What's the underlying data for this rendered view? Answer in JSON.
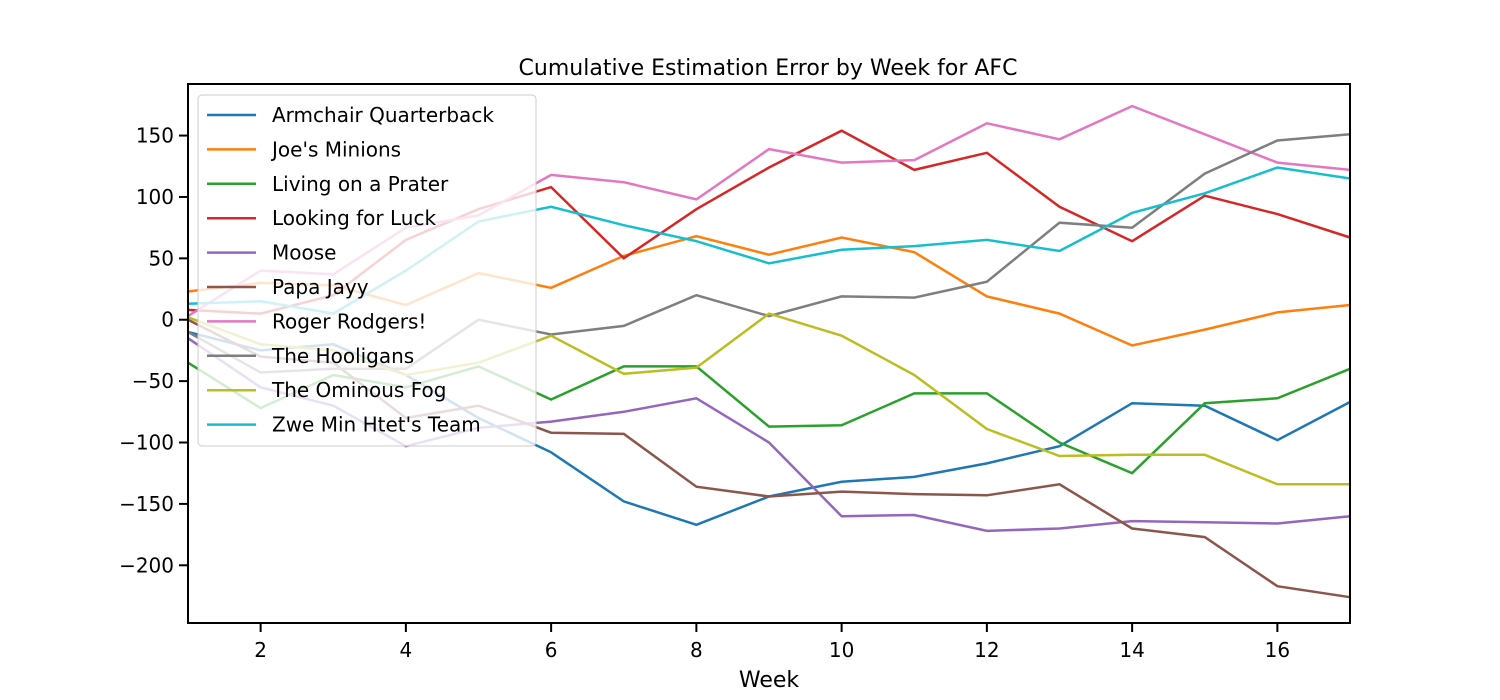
{
  "chart_data": {
    "type": "line",
    "title": "Cumulative Estimation Error by Week for AFC",
    "xlabel": "Week",
    "ylabel": "",
    "xlim": [
      1,
      17
    ],
    "ylim": [
      -247,
      192
    ],
    "xticks": [
      2,
      4,
      6,
      8,
      10,
      12,
      14,
      16
    ],
    "yticks": [
      -200,
      -150,
      -100,
      -50,
      0,
      50,
      100,
      150
    ],
    "grid": false,
    "legend_position": "upper-left",
    "x": [
      1,
      2,
      3,
      4,
      5,
      6,
      7,
      8,
      9,
      10,
      11,
      12,
      13,
      14,
      15,
      16,
      17
    ],
    "series": [
      {
        "name": "Armchair Quarterback",
        "color": "#1f77b4",
        "values": [
          -10,
          -25,
          -20,
          -45,
          -80,
          -108,
          -148,
          -167,
          -144,
          -132,
          -128,
          -117,
          -103,
          -68,
          -70,
          -98,
          -67
        ]
      },
      {
        "name": "Joe's Minions",
        "color": "#ff7f0e",
        "values": [
          23,
          30,
          28,
          12,
          38,
          26,
          52,
          68,
          53,
          67,
          55,
          19,
          5,
          -21,
          -8,
          6,
          12
        ]
      },
      {
        "name": "Living on a Prater",
        "color": "#2ca02c",
        "values": [
          -35,
          -72,
          -45,
          -55,
          -38,
          -65,
          -38,
          -38,
          -87,
          -86,
          -60,
          -60,
          -100,
          -125,
          -68,
          -64,
          -40
        ]
      },
      {
        "name": "Looking for Luck",
        "color": "#d62728",
        "values": [
          8,
          5,
          20,
          65,
          90,
          108,
          50,
          90,
          124,
          154,
          122,
          136,
          92,
          64,
          101,
          86,
          67
        ]
      },
      {
        "name": "Moose",
        "color": "#9467bd",
        "values": [
          -15,
          -55,
          -70,
          -103,
          -88,
          -83,
          -75,
          -64,
          -100,
          -160,
          -159,
          -172,
          -170,
          -164,
          -165,
          -166,
          -160
        ]
      },
      {
        "name": "Papa Jayy",
        "color": "#8c564b",
        "values": [
          0,
          -30,
          -35,
          -80,
          -70,
          -92,
          -93,
          -136,
          -144,
          -140,
          -142,
          -143,
          -134,
          -170,
          -177,
          -217,
          -226
        ]
      },
      {
        "name": "Roger Rodgers!",
        "color": "#e377c2",
        "values": [
          3,
          40,
          37,
          75,
          85,
          118,
          112,
          98,
          139,
          128,
          130,
          160,
          147,
          174,
          151,
          128,
          122
        ]
      },
      {
        "name": "The Hooligans",
        "color": "#7f7f7f",
        "values": [
          -10,
          -43,
          -40,
          -40,
          0,
          -12,
          -5,
          20,
          3,
          19,
          18,
          31,
          79,
          75,
          119,
          146,
          151
        ]
      },
      {
        "name": "The Ominous Fog",
        "color": "#bcbd22",
        "values": [
          2,
          -20,
          -25,
          -45,
          -35,
          -13,
          -44,
          -39,
          5,
          -13,
          -45,
          -89,
          -111,
          -110,
          -110,
          -134,
          -134
        ]
      },
      {
        "name": "Zwe Min Htet's Team",
        "color": "#17becf",
        "values": [
          13,
          15,
          5,
          40,
          80,
          92,
          77,
          64,
          46,
          57,
          60,
          65,
          56,
          87,
          103,
          124,
          115
        ]
      }
    ]
  }
}
